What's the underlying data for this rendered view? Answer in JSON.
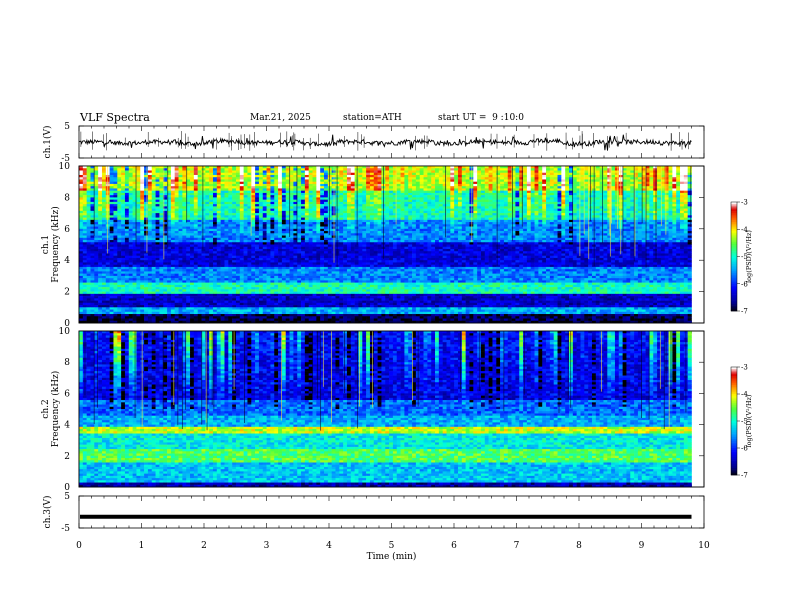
{
  "header": {
    "title": "VLF Spectra",
    "date": "Mar.21, 2025",
    "station": "station=ATH",
    "start": "start UT =  9 :10:0"
  },
  "chart_data": [
    {
      "type": "line",
      "panel": "ch1-waveform",
      "title": "VLF Spectra",
      "ylabel": "ch.1(V)",
      "xlim": [
        0,
        10
      ],
      "ylim": [
        -5,
        5
      ],
      "yticks": [
        "5",
        "-5"
      ],
      "x_end": 9.8,
      "series": [
        {
          "values_description_level": [
            0.0,
            -0.3,
            0.0,
            -0.5,
            0.2,
            -0.2,
            0.0,
            -0.6,
            0.1,
            -0.3,
            0.2,
            -0.4,
            0.0,
            -0.2,
            0.3,
            -0.5,
            0.1,
            0.0,
            -0.3,
            0.2
          ]
        }
      ]
    },
    {
      "type": "heatmap",
      "panel": "ch1-spectrogram",
      "ylabel_line1": "ch.1",
      "ylabel_line2": "Frequency (kHz)",
      "xlim": [
        0,
        10
      ],
      "ylim": [
        0,
        10
      ],
      "yticks": [
        "0",
        "2",
        "4",
        "6",
        "8",
        "10"
      ],
      "x_end": 9.8,
      "colorbar": {
        "label": "log(PSD)(V²/Hz)",
        "range": [
          -7,
          -3
        ],
        "ticks": [
          "-3",
          "-4",
          "-5",
          "-6",
          "-7"
        ]
      },
      "bands_khz": [
        {
          "from": 0.0,
          "to": 0.2,
          "level": -7.0
        },
        {
          "from": 0.2,
          "to": 0.6,
          "level": -6.8
        },
        {
          "from": 0.6,
          "to": 1.0,
          "level": -5.4
        },
        {
          "from": 1.0,
          "to": 1.8,
          "level": -6.4
        },
        {
          "from": 1.8,
          "to": 2.6,
          "level": -4.9
        },
        {
          "from": 2.6,
          "to": 3.6,
          "level": -5.6
        },
        {
          "from": 3.6,
          "to": 5.2,
          "level": -6.3
        },
        {
          "from": 5.2,
          "to": 6.6,
          "level": -5.6
        },
        {
          "from": 6.6,
          "to": 8.4,
          "level": -5.0
        },
        {
          "from": 8.4,
          "to": 10.0,
          "level": -4.4
        }
      ]
    },
    {
      "type": "heatmap",
      "panel": "ch2-spectrogram",
      "ylabel_line1": "ch.2",
      "ylabel_line2": "Frequency (kHz)",
      "xlim": [
        0,
        10
      ],
      "ylim": [
        0,
        10
      ],
      "yticks": [
        "0",
        "2",
        "4",
        "6",
        "8",
        "10"
      ],
      "x_end": 9.8,
      "colorbar": {
        "label": "log(PSD)(V²/Hz)",
        "range": [
          -7,
          -3
        ],
        "ticks": [
          "-3",
          "-4",
          "-5",
          "-6",
          "-7"
        ]
      },
      "bands_khz": [
        {
          "from": 0.0,
          "to": 0.3,
          "level": -6.5
        },
        {
          "from": 0.3,
          "to": 1.6,
          "level": -5.3
        },
        {
          "from": 1.6,
          "to": 2.4,
          "level": -4.6
        },
        {
          "from": 2.4,
          "to": 3.4,
          "level": -5.1
        },
        {
          "from": 3.4,
          "to": 3.8,
          "level": -4.2
        },
        {
          "from": 3.8,
          "to": 4.6,
          "level": -5.4
        },
        {
          "from": 4.6,
          "to": 5.6,
          "level": -5.7
        },
        {
          "from": 5.6,
          "to": 10.0,
          "level": -6.3
        }
      ]
    },
    {
      "type": "line",
      "panel": "ch3-waveform",
      "ylabel": "ch.3(V)",
      "xlabel": "Time (min)",
      "xlim": [
        0,
        10
      ],
      "ylim": [
        -5,
        5
      ],
      "yticks": [
        "5",
        "-5"
      ],
      "xticks": [
        "0",
        "1",
        "2",
        "3",
        "4",
        "5",
        "6",
        "7",
        "8",
        "9",
        "10"
      ],
      "x_end": 9.8,
      "series": [
        {
          "level_v": -1.5
        }
      ]
    }
  ]
}
